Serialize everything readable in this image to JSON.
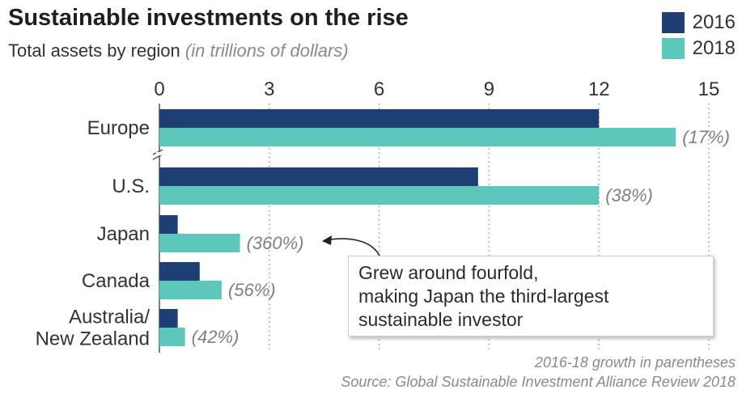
{
  "header": {
    "title": "Sustainable investments on the rise",
    "subtitle_main": "Total assets by region",
    "subtitle_note": "(in trillions of dollars)"
  },
  "legend": [
    {
      "label": "2016",
      "color": "#1d3f74"
    },
    {
      "label": "2018",
      "color": "#5ec7bc"
    }
  ],
  "callout": {
    "lines": [
      "Grew around fourfold,",
      "making Japan the third-largest",
      "sustainable investor"
    ]
  },
  "footnotes": {
    "growth": "2016-18 growth in parentheses",
    "source": "Source: Global Sustainable Investment Alliance Review 2018"
  },
  "chart_data": {
    "type": "bar",
    "orientation": "horizontal",
    "title": "Sustainable investments on the rise",
    "subtitle": "Total assets by region (in trillions of dollars)",
    "categories": [
      "Europe",
      "U.S.",
      "Japan",
      "Canada",
      "Australia/ New Zealand"
    ],
    "category_lines": [
      [
        "Europe"
      ],
      [
        "U.S."
      ],
      [
        "Japan"
      ],
      [
        "Canada"
      ],
      [
        "Australia/",
        "New Zealand"
      ]
    ],
    "series": [
      {
        "name": "2016",
        "color": "#1d3f74",
        "values": [
          12.0,
          8.7,
          0.5,
          1.1,
          0.5
        ]
      },
      {
        "name": "2018",
        "color": "#5ec7bc",
        "values": [
          14.1,
          12.0,
          2.2,
          1.7,
          0.7
        ]
      }
    ],
    "growth_labels": [
      "(17%)",
      "(38%)",
      "(360%)",
      "(56%)",
      "(42%)"
    ],
    "xlim": [
      0,
      15
    ],
    "xticks": [
      0,
      3,
      6,
      9,
      12,
      15
    ],
    "x_axis_position": "top",
    "grid": "vertical dotted",
    "legend_position": "top-right",
    "axis_break_after": "Europe"
  }
}
